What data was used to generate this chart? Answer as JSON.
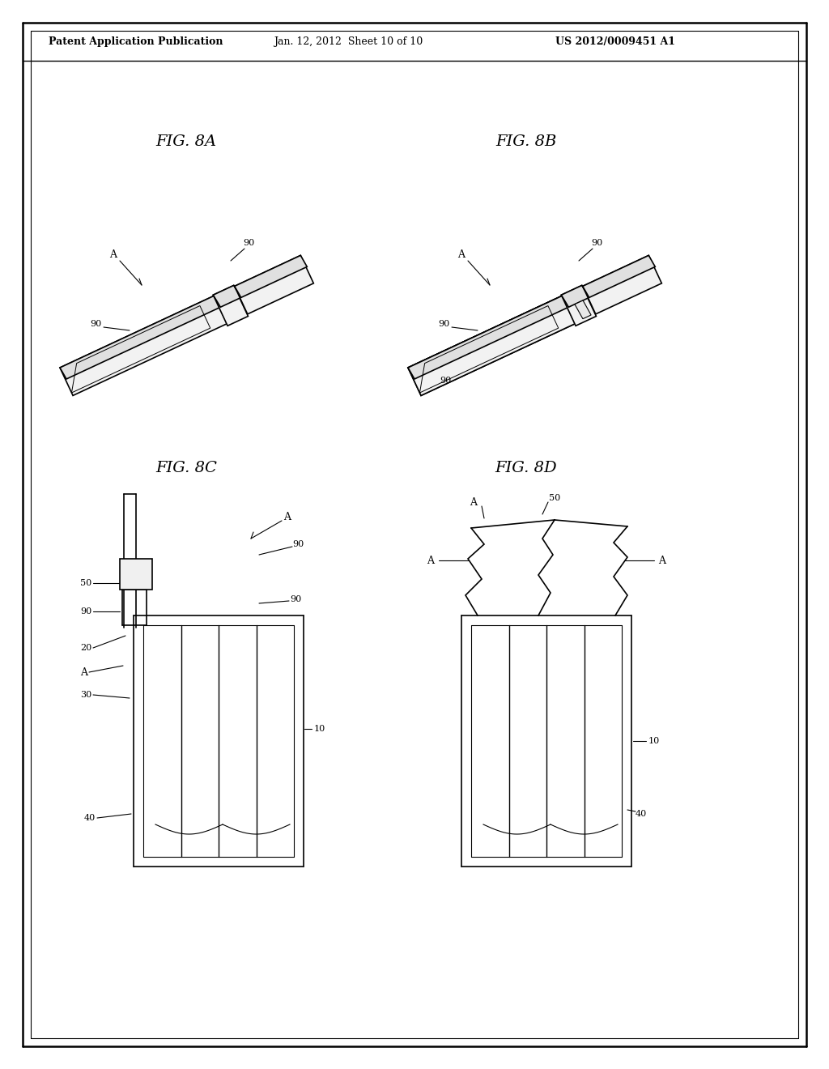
{
  "bg_color": "#ffffff",
  "header_left": "Patent Application Publication",
  "header_mid": "Jan. 12, 2012  Sheet 10 of 10",
  "header_right": "US 2012/0009451 A1",
  "fig_8a_label": "FIG. 8A",
  "fig_8b_label": "FIG. 8B",
  "fig_8c_label": "FIG. 8C",
  "fig_8d_label": "FIG. 8D",
  "line_color": "#000000",
  "line_width": 1.2
}
